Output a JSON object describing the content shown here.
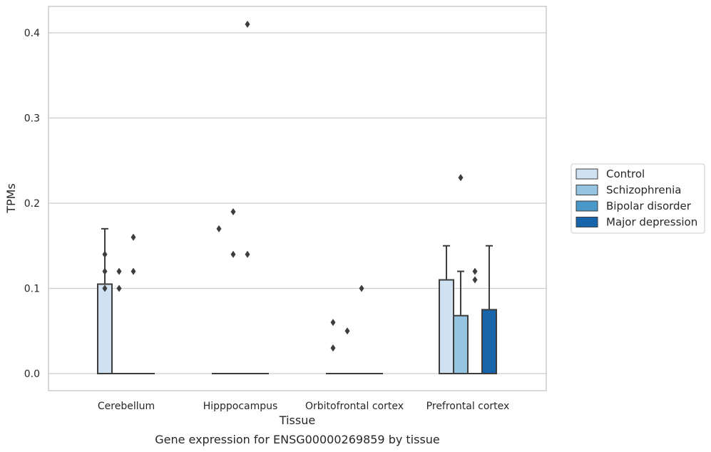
{
  "chart_data": {
    "type": "box",
    "title": "",
    "caption": "Gene expression for ENSG00000269859 by tissue",
    "xlabel": "Tissue",
    "ylabel": "TPMs",
    "ylim": [
      -0.02,
      0.43
    ],
    "yticks": [
      0.0,
      0.1,
      0.2,
      0.3,
      0.4
    ],
    "ytick_labels": [
      "0.0",
      "0.1",
      "0.2",
      "0.3",
      "0.4"
    ],
    "grid": "horizontal",
    "legend_position": "right",
    "categories": [
      "Cerebellum",
      "Hipppocampus",
      "Orbitofrontal cortex",
      "Prefrontal cortex"
    ],
    "series": [
      {
        "name": "Control",
        "color": "#d0e1f2",
        "boxes": [
          {
            "q1": 0.0,
            "median": 0.0,
            "q3": 0.105,
            "whisker_low": 0.0,
            "whisker_high": 0.17,
            "outliers": [
              0.1,
              0.12,
              0.14
            ]
          },
          {
            "q1": 0.0,
            "median": 0.0,
            "q3": 0.0,
            "whisker_low": 0.0,
            "whisker_high": 0.0,
            "outliers": [
              0.17
            ]
          },
          {
            "q1": 0.0,
            "median": 0.0,
            "q3": 0.0,
            "whisker_low": 0.0,
            "whisker_high": 0.0,
            "outliers": [
              0.03,
              0.06
            ]
          },
          {
            "q1": 0.0,
            "median": 0.0,
            "q3": 0.11,
            "whisker_low": 0.0,
            "whisker_high": 0.15,
            "outliers": []
          }
        ]
      },
      {
        "name": "Schizophrenia",
        "color": "#94c4df",
        "boxes": [
          {
            "q1": 0.0,
            "median": 0.0,
            "q3": 0.0,
            "whisker_low": 0.0,
            "whisker_high": 0.0,
            "outliers": [
              0.1,
              0.12
            ]
          },
          {
            "q1": 0.0,
            "median": 0.0,
            "q3": 0.0,
            "whisker_low": 0.0,
            "whisker_high": 0.0,
            "outliers": [
              0.14,
              0.19
            ]
          },
          {
            "q1": 0.0,
            "median": 0.0,
            "q3": 0.0,
            "whisker_low": 0.0,
            "whisker_high": 0.0,
            "outliers": [
              0.05
            ]
          },
          {
            "q1": 0.0,
            "median": 0.0,
            "q3": 0.068,
            "whisker_low": 0.0,
            "whisker_high": 0.12,
            "outliers": [
              0.23
            ]
          }
        ]
      },
      {
        "name": "Bipolar disorder",
        "color": "#4a98c9",
        "boxes": [
          {
            "q1": 0.0,
            "median": 0.0,
            "q3": 0.0,
            "whisker_low": 0.0,
            "whisker_high": 0.0,
            "outliers": [
              0.12,
              0.16
            ]
          },
          {
            "q1": 0.0,
            "median": 0.0,
            "q3": 0.0,
            "whisker_low": 0.0,
            "whisker_high": 0.0,
            "outliers": [
              0.14,
              0.41
            ]
          },
          {
            "q1": 0.0,
            "median": 0.0,
            "q3": 0.0,
            "whisker_low": 0.0,
            "whisker_high": 0.0,
            "outliers": [
              0.1
            ]
          },
          {
            "q1": 0.0,
            "median": 0.0,
            "q3": 0.0,
            "whisker_low": 0.0,
            "whisker_high": 0.0,
            "outliers": [
              0.11,
              0.12
            ]
          }
        ]
      },
      {
        "name": "Major depression",
        "color": "#1764ab",
        "boxes": [
          {
            "q1": 0.0,
            "median": 0.0,
            "q3": 0.0,
            "whisker_low": 0.0,
            "whisker_high": 0.0,
            "outliers": []
          },
          {
            "q1": 0.0,
            "median": 0.0,
            "q3": 0.0,
            "whisker_low": 0.0,
            "whisker_high": 0.0,
            "outliers": []
          },
          {
            "q1": 0.0,
            "median": 0.0,
            "q3": 0.0,
            "whisker_low": 0.0,
            "whisker_high": 0.0,
            "outliers": []
          },
          {
            "q1": 0.0,
            "median": 0.0,
            "q3": 0.075,
            "whisker_low": 0.0,
            "whisker_high": 0.15,
            "outliers": []
          }
        ]
      }
    ]
  }
}
